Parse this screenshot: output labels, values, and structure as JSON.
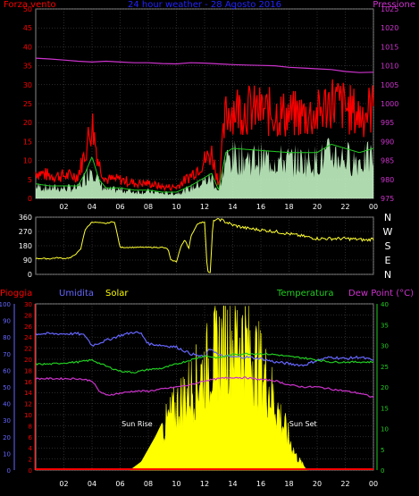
{
  "chart_data": [
    {
      "type": "line",
      "title": "24 hour weather - 28 Agosto 2016",
      "left_axis_label": "Forza vento",
      "right_axis_label": "Pressione",
      "left_ylim": [
        0,
        50
      ],
      "left_ticks": [
        "0",
        "5",
        "10",
        "15",
        "20",
        "25",
        "30",
        "35",
        "40",
        "45",
        "50"
      ],
      "right_ylim": [
        975,
        1025
      ],
      "right_ticks": [
        "975",
        "980",
        "985",
        "990",
        "995",
        "1000",
        "1005",
        "1010",
        "1015",
        "1020",
        "1025"
      ],
      "x_ticks": [
        "02",
        "04",
        "06",
        "08",
        "10",
        "12",
        "14",
        "16",
        "18",
        "20",
        "22",
        "00"
      ],
      "grid": true,
      "colors": {
        "gust": "#ff0000",
        "avg_wind": "#22cc22",
        "wind_fill": "#ccffcc",
        "pressure": "#cc33cc",
        "left_axis": "#ff0000",
        "right_axis": "#cc33cc",
        "title": "#2222ff"
      },
      "series": [
        {
          "name": "Pressione",
          "x": [
            0,
            1,
            2,
            3,
            4,
            5,
            6,
            7,
            8,
            9,
            10,
            11,
            12,
            13,
            14,
            15,
            16,
            17,
            18,
            19,
            20,
            21,
            22,
            23,
            24
          ],
          "values": [
            1012,
            1011.8,
            1011.5,
            1011.2,
            1011,
            1011.2,
            1011,
            1010.8,
            1010.8,
            1010.6,
            1010.5,
            1010.8,
            1010.7,
            1010.5,
            1010.3,
            1010.2,
            1010.1,
            1010,
            1009.6,
            1009.4,
            1009.2,
            1009,
            1008.5,
            1008.2,
            1008.3
          ]
        }
      ]
    },
    {
      "type": "line",
      "series_name": "Direzione vento",
      "ylim": [
        0,
        360
      ],
      "left_ticks": [
        "0",
        "90",
        "180",
        "270",
        "360"
      ],
      "right_labels": [
        "N",
        "W",
        "S",
        "E",
        "N"
      ],
      "color": "#ffff33",
      "series": [
        {
          "x": [
            0,
            0.5,
            1,
            1.5,
            2,
            2.5,
            3,
            3.2,
            3.5,
            4,
            4.5,
            5,
            5.4,
            5.6,
            6,
            7,
            8,
            8.5,
            9,
            9.4,
            9.6,
            10,
            10.3,
            10.6,
            10.9,
            11,
            11.2,
            11.5,
            12,
            12.2,
            12.4,
            12.6,
            12.7,
            13,
            13.5,
            14,
            15,
            16,
            17,
            18,
            19,
            20,
            21,
            22,
            23,
            23.5,
            24
          ],
          "values": [
            100,
            100,
            98,
            105,
            100,
            105,
            140,
            160,
            280,
            330,
            325,
            320,
            330,
            330,
            170,
            170,
            170,
            170,
            170,
            160,
            90,
            80,
            170,
            220,
            160,
            230,
            270,
            320,
            330,
            20,
            10,
            335,
            340,
            350,
            330,
            310,
            290,
            280,
            270,
            255,
            240,
            225,
            225,
            225,
            220,
            215,
            225
          ]
        }
      ]
    },
    {
      "type": "line",
      "legend": [
        "Pioggia",
        "Umidita",
        "Solar",
        "Temperatura",
        "Dew Point (°C)"
      ],
      "axis_pioggia_ticks": [
        "0",
        "2",
        "4",
        "6",
        "8",
        "10",
        "12",
        "14",
        "16",
        "18",
        "20",
        "22",
        "24",
        "26",
        "28",
        "30"
      ],
      "axis_umidita_ticks": [
        "0",
        "10",
        "20",
        "30",
        "40",
        "50",
        "60",
        "70",
        "80",
        "90",
        "100"
      ],
      "axis_temp_ticks": [
        "0",
        "5",
        "10",
        "15",
        "20",
        "25",
        "30",
        "35",
        "40"
      ],
      "temp_ylim": [
        0,
        40
      ],
      "x_ticks": [
        "02",
        "04",
        "06",
        "08",
        "10",
        "12",
        "14",
        "16",
        "18",
        "20",
        "22",
        "00"
      ],
      "annotations": [
        "Sun Rise",
        "Sun Set"
      ],
      "colors": {
        "pioggia": "#ff0000",
        "umidita": "#6666ff",
        "solar": "#ffff00",
        "temperatura": "#22cc22",
        "dewpoint": "#cc33cc"
      },
      "series": [
        {
          "name": "Umidita",
          "x": [
            0,
            1,
            2,
            3,
            3.5,
            4,
            5,
            6,
            7,
            7.5,
            8,
            9,
            10,
            11,
            12,
            12.3,
            12.5,
            13,
            14,
            15,
            16,
            17,
            18,
            19,
            20,
            21,
            22,
            23,
            24
          ],
          "values": [
            82,
            82,
            82,
            82,
            81,
            75,
            78,
            81,
            83,
            82,
            76,
            75,
            74,
            70,
            68,
            72,
            73,
            69,
            68,
            68,
            67,
            65,
            64,
            63,
            66,
            68,
            67,
            68,
            66
          ]
        },
        {
          "name": "Temperatura",
          "x": [
            0,
            1,
            2,
            3,
            4,
            5,
            6,
            7,
            8,
            9,
            10,
            11,
            12,
            13,
            14,
            15,
            16,
            17,
            18,
            19,
            20,
            21,
            22,
            23,
            24
          ],
          "values": [
            25.5,
            25.5,
            25.8,
            26,
            26.5,
            25,
            23.8,
            23.5,
            24.2,
            24.5,
            25.5,
            26.5,
            27.5,
            27,
            27.8,
            28,
            28,
            27.8,
            27.3,
            27,
            26.5,
            26,
            26,
            26,
            26
          ]
        },
        {
          "name": "Dew Point",
          "x": [
            0,
            1,
            2,
            3,
            4,
            4.5,
            5,
            6,
            7,
            8,
            9,
            10,
            11,
            12,
            13,
            14,
            15,
            16,
            17,
            18,
            19,
            20,
            21,
            22,
            23,
            24
          ],
          "values": [
            22,
            22,
            22,
            22,
            21.5,
            19,
            18,
            18.5,
            19,
            19,
            19.5,
            20,
            20.5,
            21.5,
            22,
            22.3,
            22.2,
            21.8,
            21.5,
            20.5,
            20,
            20,
            19.5,
            19,
            18.5,
            17.5
          ]
        },
        {
          "name": "Solar",
          "x": [
            6.7,
            7.5,
            8.5,
            9.5,
            10.5,
            11.5,
            12.5,
            13.5,
            14.5,
            15.5,
            16.5,
            17.5,
            18.5,
            19.3
          ],
          "values": [
            0,
            2,
            8,
            15,
            21,
            26,
            32,
            37,
            39,
            33,
            25,
            14,
            4,
            0
          ]
        }
      ]
    }
  ]
}
